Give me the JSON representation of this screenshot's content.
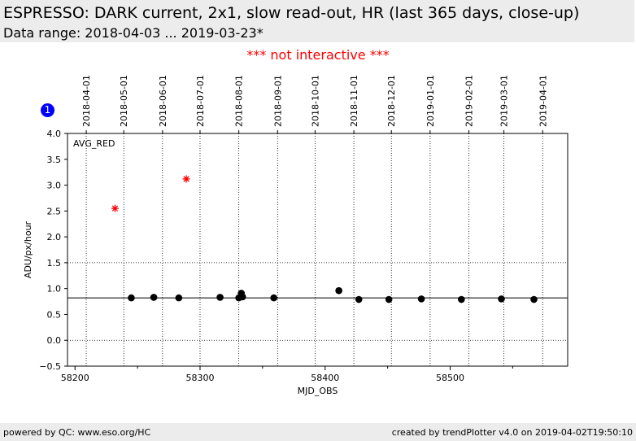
{
  "header": {
    "title": "ESPRESSO: DARK current, 2x1, slow read-out, HR (last 365 days, close-up)",
    "subtitle": "Data range: 2018-04-03 ... 2019-03-23*"
  },
  "notice": "*** not interactive ***",
  "badge": "1",
  "footer": {
    "left": "powered by QC: www.eso.org/HC",
    "right": "created by trendPlotter v4.0 on 2019-04-02T19:50:10"
  },
  "colors": {
    "header_bg": "#ececec",
    "notice": "#ff0000",
    "badge": "#0000ff",
    "outlier": "#ff0000",
    "point": "#000000"
  },
  "chart_data": {
    "type": "scatter",
    "annotation": "AVG_RED",
    "xlabel": "MJD_OBS",
    "ylabel": "ADU/px/hour",
    "xlim": [
      58194,
      58594
    ],
    "ylim": [
      -0.5,
      4.0
    ],
    "x_ticks": [
      58200,
      58300,
      58400,
      58500
    ],
    "y_ticks": [
      -0.5,
      0.0,
      0.5,
      1.0,
      1.5,
      2.0,
      2.5,
      3.0,
      3.5,
      4.0
    ],
    "y_tick_labels": [
      "−0.5",
      "0.0",
      "0.5",
      "1.0",
      "1.5",
      "2.0",
      "2.5",
      "3.0",
      "3.5",
      "4.0"
    ],
    "y_gridlines": [
      0.0,
      1.5
    ],
    "reference_line": 0.82,
    "top_date_ticks": [
      {
        "mjd": 58209,
        "label": "2018-04-01"
      },
      {
        "mjd": 58239,
        "label": "2018-05-01"
      },
      {
        "mjd": 58270,
        "label": "2018-06-01"
      },
      {
        "mjd": 58300,
        "label": "2018-07-01"
      },
      {
        "mjd": 58331,
        "label": "2018-08-01"
      },
      {
        "mjd": 58362,
        "label": "2018-09-01"
      },
      {
        "mjd": 58392,
        "label": "2018-10-01"
      },
      {
        "mjd": 58423,
        "label": "2018-11-01"
      },
      {
        "mjd": 58453,
        "label": "2018-12-01"
      },
      {
        "mjd": 58484,
        "label": "2019-01-01"
      },
      {
        "mjd": 58515,
        "label": "2019-02-01"
      },
      {
        "mjd": 58543,
        "label": "2019-03-01"
      },
      {
        "mjd": 58574,
        "label": "2019-04-01"
      }
    ],
    "series": [
      {
        "marker": "circle",
        "x": [
          58245,
          58263,
          58283,
          58316,
          58331,
          58333,
          58334,
          58359,
          58411,
          58427,
          58451,
          58477,
          58509,
          58541,
          58567
        ],
        "y": [
          0.82,
          0.83,
          0.82,
          0.83,
          0.82,
          0.91,
          0.84,
          0.82,
          0.96,
          0.79,
          0.79,
          0.8,
          0.79,
          0.8,
          0.79
        ]
      },
      {
        "marker": "star",
        "x": [
          58232,
          58289
        ],
        "y": [
          2.55,
          3.12
        ]
      }
    ]
  }
}
